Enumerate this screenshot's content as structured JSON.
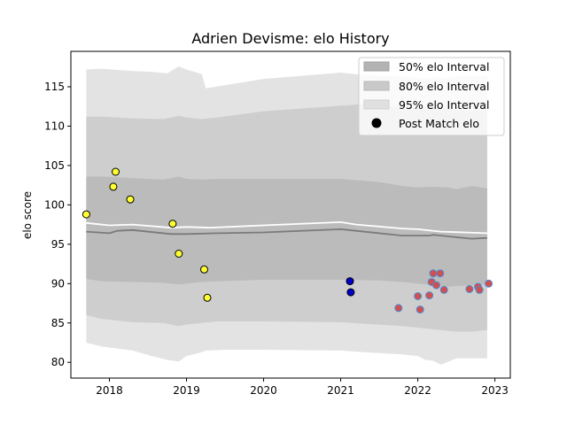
{
  "chart_data": {
    "type": "line",
    "title": "Adrien Devisme: elo History",
    "ylabel": "elo score",
    "xlabel": "",
    "xlim": [
      2017.5,
      2023.2
    ],
    "ylim": [
      78,
      119.5
    ],
    "x_ticks": [
      2018,
      2019,
      2020,
      2021,
      2022,
      2023
    ],
    "y_ticks": [
      80,
      85,
      90,
      95,
      100,
      105,
      110,
      115
    ],
    "grid": false,
    "legend": {
      "placement": "top-right",
      "entries": [
        {
          "label": "50% elo Interval",
          "color": "#b3b3b3"
        },
        {
          "label": "80% elo Interval",
          "color": "#c9c9c9"
        },
        {
          "label": "95% elo Interval",
          "color": "#e0e0e0"
        },
        {
          "label": "Post Match elo",
          "color": "#000000"
        }
      ]
    },
    "band_95": {
      "x": [
        2017.7,
        2017.9,
        2018.3,
        2018.55,
        2018.75,
        2018.9,
        2019.0,
        2019.2,
        2019.25,
        2019.5,
        2020.0,
        2021.0,
        2021.3,
        2021.8,
        2022.0,
        2022.1,
        2022.2,
        2022.3,
        2022.5,
        2022.8,
        2022.9
      ],
      "lower": [
        82.5,
        82.0,
        81.5,
        80.8,
        80.3,
        80.1,
        80.8,
        81.3,
        81.5,
        81.6,
        81.6,
        81.5,
        81.3,
        81.0,
        80.8,
        80.3,
        80.2,
        79.7,
        80.5,
        80.5,
        80.5
      ],
      "upper": [
        117.2,
        117.3,
        117.0,
        116.9,
        116.7,
        117.6,
        117.2,
        116.6,
        114.8,
        115.2,
        116.0,
        116.8,
        116.5,
        116.3,
        116.1,
        116.0,
        116.2,
        116.1,
        116.3,
        116.3,
        116.4
      ]
    },
    "band_80": {
      "x": [
        2017.7,
        2017.9,
        2018.3,
        2018.7,
        2018.9,
        2019.0,
        2019.2,
        2019.4,
        2020.0,
        2021.0,
        2021.3,
        2021.8,
        2022.0,
        2022.2,
        2022.4,
        2022.5,
        2022.7,
        2022.9
      ],
      "lower": [
        86.0,
        85.5,
        85.1,
        85.0,
        84.6,
        84.8,
        85.0,
        85.2,
        85.2,
        85.1,
        84.9,
        84.6,
        84.4,
        84.2,
        84.0,
        83.9,
        83.9,
        84.1
      ],
      "upper": [
        111.2,
        111.2,
        111.0,
        110.9,
        111.3,
        111.1,
        110.9,
        111.1,
        111.9,
        112.6,
        112.8,
        112.4,
        112.3,
        112.4,
        112.3,
        112.0,
        112.0,
        112.1
      ]
    },
    "band_50": {
      "x": [
        2017.7,
        2017.9,
        2018.3,
        2018.7,
        2018.9,
        2019.0,
        2019.2,
        2019.4,
        2020.0,
        2021.0,
        2021.5,
        2021.8,
        2022.0,
        2022.2,
        2022.4,
        2022.5,
        2022.7,
        2022.9
      ],
      "lower": [
        90.6,
        90.3,
        90.2,
        90.1,
        89.9,
        90.0,
        90.2,
        90.3,
        90.5,
        90.5,
        90.4,
        90.2,
        90.0,
        89.8,
        89.6,
        89.7,
        89.8,
        89.9
      ],
      "upper": [
        103.6,
        103.6,
        103.4,
        103.2,
        103.6,
        103.3,
        103.2,
        103.3,
        103.3,
        103.3,
        102.9,
        102.4,
        102.2,
        102.3,
        102.2,
        102.0,
        102.4,
        102.1
      ]
    },
    "mean_line": {
      "x": [
        2017.7,
        2018.0,
        2018.1,
        2018.3,
        2018.8,
        2019.0,
        2019.4,
        2020.0,
        2021.0,
        2021.2,
        2021.8,
        2022.0,
        2022.15,
        2022.2,
        2022.4,
        2022.7,
        2022.9
      ],
      "y": [
        96.6,
        96.4,
        96.7,
        96.8,
        96.3,
        96.3,
        96.4,
        96.5,
        96.9,
        96.7,
        96.1,
        96.1,
        96.1,
        96.2,
        96.0,
        95.7,
        95.8
      ]
    },
    "white_line": {
      "x": [
        2017.7,
        2018.0,
        2018.3,
        2018.8,
        2019.0,
        2019.3,
        2020.0,
        2021.0,
        2021.2,
        2021.8,
        2022.0,
        2022.3,
        2022.9
      ],
      "y": [
        97.7,
        97.4,
        97.5,
        97.1,
        97.2,
        97.1,
        97.4,
        97.8,
        97.5,
        97.0,
        96.9,
        96.6,
        96.4
      ]
    },
    "series": [
      {
        "name": "Post Match elo",
        "fill": "#ffff33",
        "stroke": "#000000",
        "points": [
          {
            "x": 2017.7,
            "y": 98.8
          },
          {
            "x": 2018.05,
            "y": 102.3
          },
          {
            "x": 2018.08,
            "y": 104.2
          },
          {
            "x": 2018.27,
            "y": 100.7
          },
          {
            "x": 2018.82,
            "y": 97.6
          },
          {
            "x": 2018.9,
            "y": 93.8
          },
          {
            "x": 2019.23,
            "y": 91.8
          },
          {
            "x": 2019.27,
            "y": 88.2
          }
        ]
      },
      {
        "fill": "#0000cc",
        "stroke": "#000000",
        "points": [
          {
            "x": 2021.12,
            "y": 90.3
          },
          {
            "x": 2021.13,
            "y": 88.9
          }
        ]
      },
      {
        "fill": "#d05050",
        "stroke": "#4a8fd6",
        "points": [
          {
            "x": 2021.75,
            "y": 86.9
          },
          {
            "x": 2022.0,
            "y": 88.4
          },
          {
            "x": 2022.03,
            "y": 86.7
          },
          {
            "x": 2022.15,
            "y": 88.5
          },
          {
            "x": 2022.18,
            "y": 90.2
          },
          {
            "x": 2022.2,
            "y": 91.3
          },
          {
            "x": 2022.24,
            "y": 89.8
          },
          {
            "x": 2022.29,
            "y": 91.3
          },
          {
            "x": 2022.34,
            "y": 89.2
          },
          {
            "x": 2022.67,
            "y": 89.3
          },
          {
            "x": 2022.78,
            "y": 89.6
          },
          {
            "x": 2022.8,
            "y": 89.2
          },
          {
            "x": 2022.92,
            "y": 90.0
          }
        ]
      }
    ]
  }
}
